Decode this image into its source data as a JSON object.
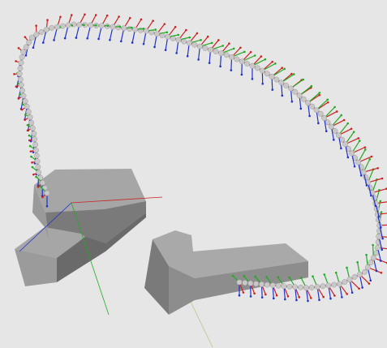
{
  "viewer": {
    "background": "#e6e6e6",
    "colors": {
      "x_axis": "#cc2222",
      "y_axis": "#22aa22",
      "z_axis": "#2233cc",
      "trajectory_points": "#c8c8c8",
      "box_top": "#a9a9a9",
      "box_side_light": "#9a9a9a",
      "box_side_dark": "#6e6e6e"
    },
    "objects": [
      {
        "name": "trajectory",
        "type": "pose-path",
        "frame_axes": [
          "x",
          "y",
          "z"
        ]
      },
      {
        "name": "start-block",
        "type": "L-shaped-box"
      },
      {
        "name": "goal-block",
        "type": "L-shaped-box"
      },
      {
        "name": "world-frame",
        "type": "axis-triad"
      }
    ]
  }
}
